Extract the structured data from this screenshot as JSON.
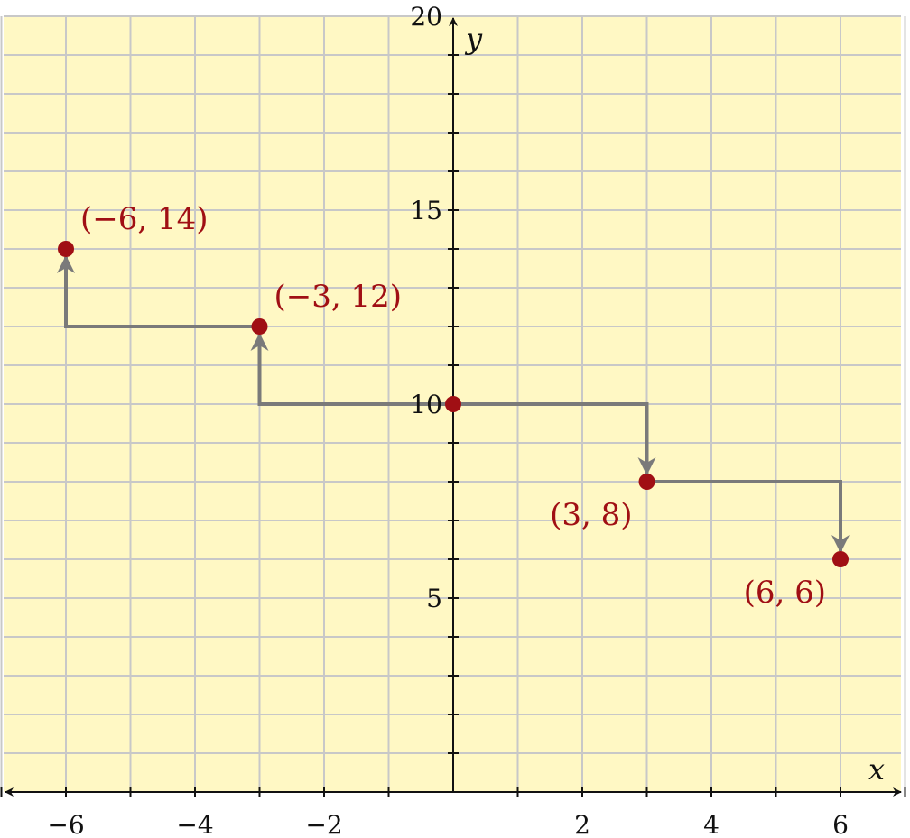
{
  "chart_data": {
    "type": "scatter",
    "title": "",
    "xlabel": "x",
    "ylabel": "y",
    "xlim": [
      -7,
      7
    ],
    "ylim": [
      0,
      20
    ],
    "grid": true,
    "x_ticks": [
      {
        "value": -6,
        "label": "−6"
      },
      {
        "value": -4,
        "label": "−4"
      },
      {
        "value": -2,
        "label": "−2"
      },
      {
        "value": 2,
        "label": "2"
      },
      {
        "value": 4,
        "label": "4"
      },
      {
        "value": 6,
        "label": "6"
      }
    ],
    "y_ticks": [
      {
        "value": 5,
        "label": "5"
      },
      {
        "value": 10,
        "label": "10"
      },
      {
        "value": 15,
        "label": "15"
      },
      {
        "value": 20,
        "label": "20"
      }
    ],
    "points": [
      {
        "x": -6,
        "y": 14,
        "label": "(−6, 14)"
      },
      {
        "x": -3,
        "y": 12,
        "label": "(−3, 12)"
      },
      {
        "x": 0,
        "y": 10,
        "label": ""
      },
      {
        "x": 3,
        "y": 8,
        "label": "(3, 8)"
      },
      {
        "x": 6,
        "y": 6,
        "label": "(6, 6)"
      }
    ],
    "step_paths": [
      {
        "from": [
          0,
          10
        ],
        "corner": [
          -3,
          10
        ],
        "to": [
          -3,
          12
        ]
      },
      {
        "from": [
          -3,
          12
        ],
        "corner": [
          -6,
          12
        ],
        "to": [
          -6,
          14
        ]
      },
      {
        "from": [
          0,
          10
        ],
        "corner": [
          3,
          10
        ],
        "to": [
          3,
          8
        ]
      },
      {
        "from": [
          3,
          8
        ],
        "corner": [
          6,
          8
        ],
        "to": [
          6,
          6
        ]
      }
    ]
  },
  "colors": {
    "background": "#fff8c4",
    "grid": "#c8c8c8",
    "axis": "#111111",
    "points": "#a00f14",
    "step_path": "#7a7a7a"
  }
}
